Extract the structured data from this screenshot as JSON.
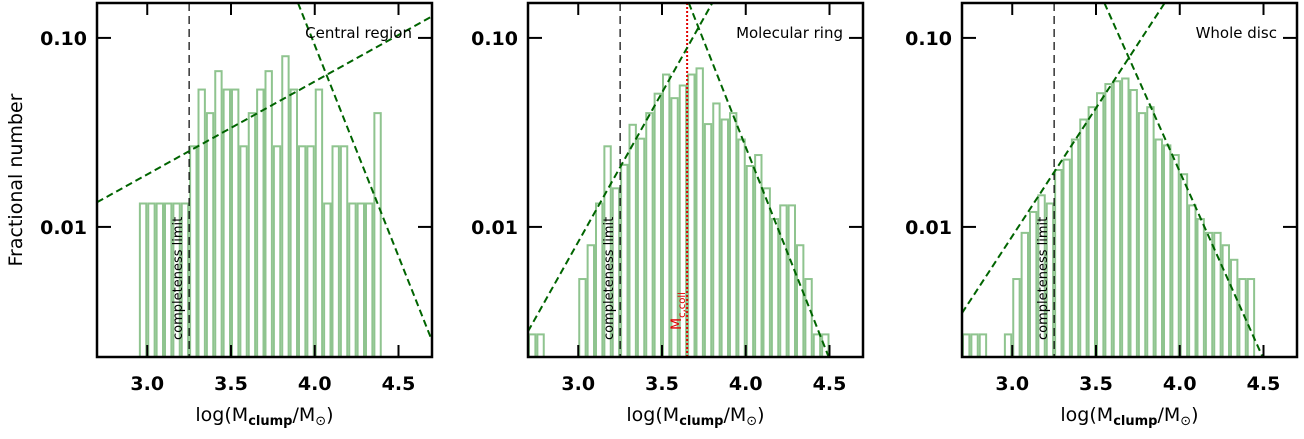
{
  "chart_data": [
    {
      "type": "histogram",
      "ylabel": "Fractional number",
      "annotation": "Central region",
      "xlabel_parts": [
        "log(M",
        "clump",
        "/M",
        "⊙",
        ")"
      ],
      "xlim": [
        2.7,
        4.7
      ],
      "ylim": [
        0.00205,
        0.153
      ],
      "yscale": "log",
      "color": "#8fc48f",
      "xticks": [
        {
          "value": 3,
          "label": "3.0"
        },
        3.5,
        {
          "value": 4,
          "label": "4.0"
        },
        4.5
      ],
      "yticks": [
        {
          "value": 0.01,
          "label": "0.01"
        },
        {
          "value": 0.1,
          "label": "0.10"
        }
      ],
      "bins": [
        2.95,
        3,
        3.05,
        3.1,
        3.15,
        3.2,
        3.25,
        3.3,
        3.35,
        3.4,
        3.45,
        3.5,
        3.55,
        3.6,
        3.65,
        3.7,
        3.75,
        3.8,
        3.85,
        3.9,
        3.95,
        4,
        4.05,
        4.1,
        4.15,
        4.2,
        4.25,
        4.3,
        4.35,
        4.4
      ],
      "values": [
        0.0133,
        0.0133,
        0.0133,
        0.0133,
        0.0133,
        0.0133,
        0.0267,
        0.0533,
        0.04,
        0.0667,
        0.0533,
        0.0533,
        0.0267,
        0.04,
        0.0533,
        0.0667,
        0.0267,
        0.08,
        0.0533,
        0.0267,
        0.0267,
        0.0533,
        0.0133,
        0.0267,
        0.0267,
        0.0133,
        0.0133,
        0.0133,
        0.04
      ],
      "fit_lines": [
        {
          "color": "#006400",
          "x": [
            2.7,
            4.7
          ],
          "y": [
            0.0135,
            0.13
          ]
        },
        {
          "color": "#006400",
          "x": [
            3.9,
            4.7
          ],
          "y": [
            0.153,
            0.0025
          ]
        }
      ],
      "vlines": [
        {
          "x": 3.25,
          "color": "#000000",
          "dash": "dashed",
          "label": "completeness limit"
        }
      ]
    },
    {
      "type": "histogram",
      "annotation": "Molecular ring",
      "xlabel_parts": [
        "log(M",
        "clump",
        "/M",
        "⊙",
        ")"
      ],
      "xlim": [
        2.7,
        4.7
      ],
      "ylim": [
        0.00205,
        0.153
      ],
      "yscale": "log",
      "color": "#8fc48f",
      "xticks": [
        {
          "value": 3,
          "label": "3.0"
        },
        3.5,
        {
          "value": 4,
          "label": "4.0"
        },
        4.5
      ],
      "yticks": [
        {
          "value": 0.01,
          "label": "0.01"
        },
        {
          "value": 0.1,
          "label": "0.10"
        }
      ],
      "bins": [
        2.7,
        2.75,
        2.8,
        2.85,
        2.9,
        2.95,
        3,
        3.05,
        3.1,
        3.15,
        3.2,
        3.25,
        3.3,
        3.35,
        3.4,
        3.45,
        3.5,
        3.55,
        3.6,
        3.65,
        3.7,
        3.75,
        3.8,
        3.85,
        3.9,
        3.95,
        4,
        4.05,
        4.1,
        4.15,
        4.2,
        4.25,
        4.3,
        4.35,
        4.4,
        4.45,
        4.5
      ],
      "values": [
        0.0027,
        0.0027,
        null,
        null,
        null,
        null,
        0.0053,
        0.008,
        0.0133,
        0.0267,
        0.016,
        0.0213,
        0.0347,
        0.0293,
        0.04,
        0.0507,
        0.064,
        0.048,
        0.056,
        0.064,
        0.069,
        0.035,
        0.045,
        0.037,
        0.04,
        0.029,
        0.021,
        0.024,
        0.016,
        0.011,
        0.013,
        0.013,
        0.008,
        0.0053,
        0.0027,
        0.0027
      ],
      "fit_lines": [
        {
          "color": "#006400",
          "x": [
            2.7,
            3.8
          ],
          "y": [
            0.0028,
            0.153
          ]
        },
        {
          "color": "#006400",
          "x": [
            3.66,
            4.5
          ],
          "y": [
            0.153,
            0.002
          ]
        }
      ],
      "vlines": [
        {
          "x": 3.25,
          "color": "#000000",
          "dash": "dashed",
          "label": "completeness limit"
        },
        {
          "x": 3.65,
          "color": "#e00000",
          "dash": "dotted",
          "label_parts": [
            "M",
            "c,coll"
          ]
        }
      ]
    },
    {
      "type": "histogram",
      "annotation": "Whole disc",
      "xlabel_parts": [
        "log(M",
        "clump",
        "/M",
        "⊙",
        ")"
      ],
      "xlim": [
        2.7,
        4.7
      ],
      "ylim": [
        0.00205,
        0.153
      ],
      "yscale": "log",
      "color": "#8fc48f",
      "xticks": [
        {
          "value": 3,
          "label": "3.0"
        },
        3.5,
        {
          "value": 4,
          "label": "4.0"
        },
        4.5
      ],
      "yticks": [
        {
          "value": 0.01,
          "label": "0.01"
        },
        {
          "value": 0.1,
          "label": "0.10"
        }
      ],
      "bins": [
        2.7,
        2.75,
        2.8,
        2.85,
        2.9,
        2.95,
        3,
        3.05,
        3.1,
        3.15,
        3.2,
        3.25,
        3.3,
        3.35,
        3.4,
        3.45,
        3.5,
        3.55,
        3.6,
        3.65,
        3.7,
        3.75,
        3.8,
        3.85,
        3.9,
        3.95,
        4,
        4.05,
        4.1,
        4.15,
        4.2,
        4.25,
        4.3,
        4.35,
        4.4,
        4.45
      ],
      "values": [
        0.0027,
        0.0027,
        0.0027,
        null,
        null,
        0.0027,
        0.0053,
        0.0093,
        0.012,
        0.0147,
        0.0133,
        0.02,
        0.0227,
        0.029,
        0.037,
        0.043,
        0.051,
        0.057,
        0.059,
        0.061,
        0.053,
        0.04,
        0.043,
        0.029,
        0.027,
        0.024,
        0.019,
        0.013,
        0.011,
        0.0093,
        0.0093,
        0.008,
        0.0067,
        0.0053,
        0.0053
      ],
      "fit_lines": [
        {
          "color": "#006400",
          "x": [
            2.7,
            3.91
          ],
          "y": [
            0.0035,
            0.153
          ]
        },
        {
          "color": "#006400",
          "x": [
            3.55,
            4.5
          ],
          "y": [
            0.153,
            0.002
          ]
        }
      ],
      "vlines": [
        {
          "x": 3.25,
          "color": "#000000",
          "dash": "dashed",
          "label": "completeness limit"
        }
      ]
    }
  ]
}
